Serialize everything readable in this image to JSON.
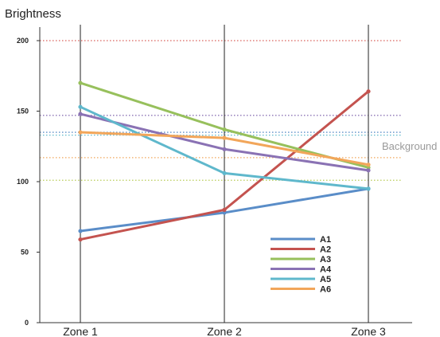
{
  "chart_data": {
    "type": "line",
    "ylabel": "Brightness",
    "ylim": [
      0,
      200
    ],
    "yticks": [
      0,
      50,
      100,
      150,
      200
    ],
    "categories": [
      "Zone 1",
      "Zone 2",
      "Zone 3"
    ],
    "series": [
      {
        "name": "A1",
        "color": "#5a8dc8",
        "values": [
          65,
          78,
          95
        ]
      },
      {
        "name": "A2",
        "color": "#c4534f",
        "values": [
          59,
          80,
          164
        ]
      },
      {
        "name": "A3",
        "color": "#97c05c",
        "values": [
          170,
          137,
          110
        ]
      },
      {
        "name": "A4",
        "color": "#8a72b4",
        "values": [
          148,
          123,
          108
        ]
      },
      {
        "name": "A5",
        "color": "#5fb8cc",
        "values": [
          153,
          106,
          95
        ]
      },
      {
        "name": "A6",
        "color": "#f2a65a",
        "values": [
          135,
          131,
          112
        ]
      }
    ],
    "reference_lines": [
      {
        "value": 200,
        "color": "#d9605a"
      },
      {
        "value": 147,
        "color": "#8a72b4"
      },
      {
        "value": 135,
        "color": "#5a8dc8"
      },
      {
        "value": 133,
        "color": "#5fb8cc"
      },
      {
        "value": 117,
        "color": "#f2a65a"
      },
      {
        "value": 101,
        "color": "#b8cc55"
      }
    ],
    "annotation": "Background",
    "legend_position": "bottom-right"
  }
}
